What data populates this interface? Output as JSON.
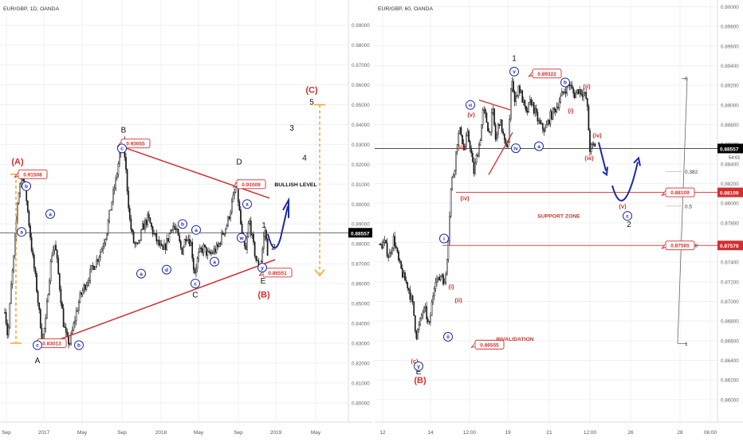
{
  "colors": {
    "red": "#d32f2f",
    "blue": "#1e2aa8",
    "orange": "#f5a623",
    "grid": "#eef0f3",
    "candle": "#1a1a1a",
    "axis_bg": "#ffffff",
    "price_bg": "#000000"
  },
  "chart_data": [
    {
      "type": "candlestick",
      "title": "EUR/GBP, 1D, OANDA",
      "x_ticks": [
        "Sep",
        "2017",
        "May",
        "Sep",
        "2018",
        "May",
        "Sep",
        "2019",
        "May"
      ],
      "y_ticks": [
        "0.99000",
        "0.98000",
        "0.97000",
        "0.96000",
        "0.95000",
        "0.94000",
        "0.93000",
        "0.92000",
        "0.91000",
        "0.90000",
        "0.89000",
        "0.88000",
        "0.87000",
        "0.86000",
        "0.85000",
        "0.84000",
        "0.83000",
        "0.82000",
        "0.81000",
        "0.80000"
      ],
      "ylim": [
        0.7975,
        0.9995
      ],
      "current_price": "0.88557",
      "path": [
        [
          0,
          0.848
        ],
        [
          4,
          0.832
        ],
        [
          8,
          0.858
        ],
        [
          12,
          0.875
        ],
        [
          16,
          0.9
        ],
        [
          19,
          0.91
        ],
        [
          23,
          0.915
        ],
        [
          27,
          0.905
        ],
        [
          31,
          0.89
        ],
        [
          35,
          0.875
        ],
        [
          40,
          0.86
        ],
        [
          44,
          0.845
        ],
        [
          48,
          0.832
        ],
        [
          52,
          0.84
        ],
        [
          56,
          0.86
        ],
        [
          60,
          0.875
        ],
        [
          64,
          0.88
        ],
        [
          67,
          0.87
        ],
        [
          71,
          0.855
        ],
        [
          75,
          0.84
        ],
        [
          79,
          0.832
        ],
        [
          83,
          0.83
        ],
        [
          87,
          0.837
        ],
        [
          91,
          0.845
        ],
        [
          96,
          0.853
        ],
        [
          101,
          0.858
        ],
        [
          106,
          0.862
        ],
        [
          112,
          0.868
        ],
        [
          118,
          0.872
        ],
        [
          124,
          0.878
        ],
        [
          130,
          0.886
        ],
        [
          136,
          0.9
        ],
        [
          142,
          0.912
        ],
        [
          147,
          0.926
        ],
        [
          152,
          0.93
        ],
        [
          156,
          0.91
        ],
        [
          160,
          0.89
        ],
        [
          165,
          0.88
        ],
        [
          170,
          0.878
        ],
        [
          176,
          0.888
        ],
        [
          183,
          0.893
        ],
        [
          190,
          0.885
        ],
        [
          196,
          0.88
        ],
        [
          202,
          0.876
        ],
        [
          208,
          0.882
        ],
        [
          214,
          0.89
        ],
        [
          220,
          0.885
        ],
        [
          226,
          0.876
        ],
        [
          232,
          0.885
        ],
        [
          238,
          0.88
        ],
        [
          242,
          0.865
        ],
        [
          248,
          0.875
        ],
        [
          254,
          0.878
        ],
        [
          260,
          0.874
        ],
        [
          266,
          0.876
        ],
        [
          272,
          0.878
        ],
        [
          278,
          0.885
        ],
        [
          284,
          0.89
        ],
        [
          290,
          0.9
        ],
        [
          296,
          0.91
        ],
        [
          300,
          0.895
        ],
        [
          304,
          0.88
        ],
        [
          308,
          0.876
        ],
        [
          312,
          0.893
        ],
        [
          317,
          0.88
        ],
        [
          322,
          0.87
        ],
        [
          327,
          0.87
        ],
        [
          332,
          0.888
        ],
        [
          336,
          0.875
        ]
      ],
      "path_y_range": [
        0.7975,
        0.9995
      ],
      "annotations": {
        "price_boxes": [
          [
            "0.91508",
            23,
            0.915
          ],
          [
            "0.83013",
            47,
            0.83
          ],
          [
            "0.93055",
            152,
            0.9305
          ],
          [
            "0.91009",
            297,
            0.91
          ],
          [
            "0.86551",
            330,
            0.8655
          ]
        ],
        "red_labels": [
          [
            "(A)",
            22,
            0.92
          ],
          [
            "(B)",
            331,
            0.853
          ],
          [
            "(C)",
            391,
            0.956
          ]
        ],
        "black_labels": [
          [
            "A",
            47,
            0.82
          ],
          [
            "B",
            155,
            0.936
          ],
          [
            "C",
            245,
            0.853
          ],
          [
            "D",
            300,
            0.92
          ],
          [
            "E",
            330,
            0.86
          ],
          [
            "1",
            331,
            0.888
          ],
          [
            "2",
            343,
            0.877
          ],
          [
            "3",
            366,
            0.937
          ],
          [
            "4",
            382,
            0.922
          ],
          [
            "5",
            391,
            0.95
          ]
        ],
        "circle_labels": [
          [
            "b",
            33,
            0.909
          ],
          [
            "a",
            27,
            0.886
          ],
          [
            "a",
            63,
            0.895
          ],
          [
            "c",
            47,
            0.829
          ],
          [
            "b",
            99,
            0.829
          ],
          [
            "c",
            153,
            0.928
          ],
          [
            "a",
            177,
            0.865
          ],
          [
            "b",
            229,
            0.89
          ],
          [
            "a",
            246,
            0.887
          ],
          [
            "d",
            209,
            0.867
          ],
          [
            "a",
            269,
            0.871
          ],
          [
            "c",
            245,
            0.86
          ],
          [
            "w",
            303,
            0.883
          ],
          [
            "x",
            310,
            0.9
          ],
          [
            "y",
            329,
            0.868
          ]
        ],
        "text": [
          [
            "BULLISH LEVEL",
            371,
            0.909
          ]
        ]
      }
    },
    {
      "type": "candlestick",
      "title": "EUR/GBP, 60, OANDA",
      "x_ticks": [
        "12",
        "14",
        "12:00",
        "19",
        "21",
        "12:00",
        "26",
        "28",
        "06:00"
      ],
      "y_ticks": [
        "0.90000",
        "0.89800",
        "0.89600",
        "0.89400",
        "0.89200",
        "0.89000",
        "0.88800",
        "0.88600",
        "0.88400",
        "0.88200",
        "0.88000",
        "0.87800",
        "0.87600",
        "0.87400",
        "0.87200",
        "0.87000",
        "0.86800",
        "0.86600",
        "0.86400",
        "0.86200",
        "0.86000"
      ],
      "ylim": [
        0.8595,
        0.9002
      ],
      "current_price": "0.88557",
      "countdown": "54:01",
      "path": [
        [
          0,
          0.8755
        ],
        [
          6,
          0.876
        ],
        [
          12,
          0.8745
        ],
        [
          18,
          0.8765
        ],
        [
          24,
          0.874
        ],
        [
          30,
          0.8725
        ],
        [
          36,
          0.8715
        ],
        [
          42,
          0.8695
        ],
        [
          46,
          0.8665
        ],
        [
          50,
          0.8675
        ],
        [
          54,
          0.869
        ],
        [
          58,
          0.869
        ],
        [
          62,
          0.8672
        ],
        [
          66,
          0.87
        ],
        [
          70,
          0.8725
        ],
        [
          74,
          0.872
        ],
        [
          78,
          0.873
        ],
        [
          82,
          0.8715
        ],
        [
          86,
          0.876
        ],
        [
          90,
          0.882
        ],
        [
          94,
          0.8835
        ],
        [
          98,
          0.8867
        ],
        [
          102,
          0.8875
        ],
        [
          106,
          0.8852
        ],
        [
          110,
          0.887
        ],
        [
          114,
          0.8858
        ],
        [
          118,
          0.883
        ],
        [
          122,
          0.8848
        ],
        [
          126,
          0.8864
        ],
        [
          130,
          0.8895
        ],
        [
          134,
          0.8885
        ],
        [
          138,
          0.887
        ],
        [
          142,
          0.8895
        ],
        [
          146,
          0.8862
        ],
        [
          150,
          0.8885
        ],
        [
          154,
          0.8875
        ],
        [
          158,
          0.8855
        ],
        [
          162,
          0.8865
        ],
        [
          166,
          0.8932
        ],
        [
          170,
          0.89
        ],
        [
          174,
          0.892
        ],
        [
          178,
          0.891
        ],
        [
          184,
          0.889
        ],
        [
          190,
          0.8905
        ],
        [
          196,
          0.889
        ],
        [
          202,
          0.8878
        ],
        [
          208,
          0.8875
        ],
        [
          214,
          0.8888
        ],
        [
          220,
          0.8895
        ],
        [
          226,
          0.8905
        ],
        [
          232,
          0.8915
        ],
        [
          238,
          0.8922
        ],
        [
          244,
          0.891
        ],
        [
          250,
          0.8916
        ],
        [
          256,
          0.8912
        ],
        [
          260,
          0.8905
        ],
        [
          264,
          0.8855
        ],
        [
          268,
          0.8858
        ],
        [
          272,
          0.886
        ]
      ],
      "path_y_range": [
        0.8595,
        0.9002
      ],
      "annotations": {
        "price_boxes": [
          [
            "0.89322",
            668,
            0.8932
          ],
          [
            "0.88109",
            835,
            0.8811
          ],
          [
            "0.87565",
            835,
            0.8757
          ],
          [
            "0.86555",
            596,
            0.8656
          ]
        ],
        "red_labels": [
          [
            "(c)",
            520,
            0.8637
          ],
          [
            "(B)",
            527,
            0.8617
          ],
          [
            "(v)",
            591,
            0.8888
          ],
          [
            "(iii)",
            579,
            0.8855
          ],
          [
            "(iv)",
            583,
            0.8803
          ],
          [
            "(i)",
            566,
            0.8713
          ],
          [
            "(ii)",
            575,
            0.8699
          ],
          [
            "(i)",
            716,
            0.8892
          ],
          [
            "(ii)",
            736,
            0.8917
          ],
          [
            "(iii)",
            739,
            0.8844
          ],
          [
            "(iv)",
            749,
            0.8867
          ],
          [
            "(v)",
            781,
            0.8795
          ]
        ],
        "black_labels": [
          [
            "1",
            645,
            0.8945
          ],
          [
            "E",
            525,
            0.8626
          ],
          [
            "2",
            789,
            0.8776
          ]
        ],
        "circle_labels": [
          [
            "y",
            525,
            0.8634
          ],
          [
            "i",
            557,
            0.8764
          ],
          [
            "ii",
            562,
            0.8664
          ],
          [
            "iii",
            590,
            0.89
          ],
          [
            "v",
            645,
            0.8934
          ],
          [
            "iv",
            647,
            0.8856
          ],
          [
            "a",
            676,
            0.8858
          ],
          [
            "b",
            709,
            0.8923
          ],
          [
            "c",
            787,
            0.8787
          ]
        ],
        "text": [
          [
            "SUPPORT ZONE",
            701,
            0.8785
          ],
          [
            "INVALIDATION",
            646,
            0.866
          ]
        ],
        "fib": [
          [
            "0",
            0.8927
          ],
          [
            "0.382",
            0.8832
          ],
          [
            "0.5",
            0.8797
          ],
          [
            "0.618",
            0.8757
          ],
          [
            "1",
            0.8657
          ]
        ]
      }
    }
  ]
}
